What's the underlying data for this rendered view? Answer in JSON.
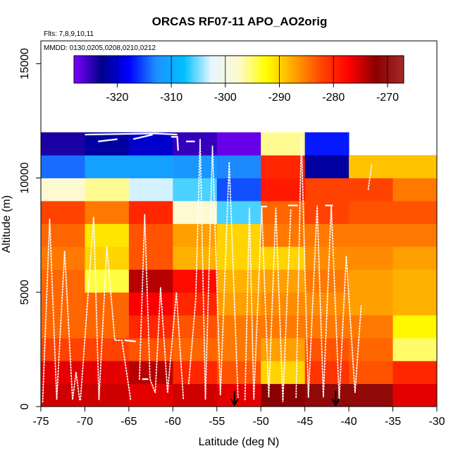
{
  "chart_data": {
    "type": "heatmap",
    "title": "ORCAS RF07-11 APO_AO2orig",
    "flights_note": "Flts: 7,8,9,10,11",
    "dates_note": "MMDD: 0130,0205,0208,0210,0212",
    "xlabel": "Latitude (deg N)",
    "ylabel": "Altitude (m)",
    "xlim": [
      -75,
      -30
    ],
    "ylim": [
      0,
      16000
    ],
    "x_ticks": [
      -75,
      -70,
      -65,
      -60,
      -55,
      -50,
      -45,
      -40,
      -35,
      -30
    ],
    "y_ticks": [
      0,
      5000,
      10000,
      15000
    ],
    "colorbar": {
      "range": [
        -328,
        -267
      ],
      "ticks": [
        -320,
        -310,
        -300,
        -290,
        -280,
        -270
      ],
      "palette": [
        "#7f00ff",
        "#00008b",
        "#0000ff",
        "#1e90ff",
        "#00bfff",
        "#e6f6ff",
        "#fffacd",
        "#ffff00",
        "#ffa500",
        "#ff4500",
        "#ff0000",
        "#8b0000",
        "#a52a2a"
      ]
    },
    "lat_bins": [
      -75,
      -70,
      -65,
      -60,
      -55,
      -50,
      -45,
      -40,
      -35
    ],
    "alt_bins": [
      0,
      1000,
      2000,
      3000,
      4000,
      5000,
      6000,
      7000,
      8000,
      9000,
      10000,
      11000,
      12000
    ],
    "values": [
      [
        -275,
        -275,
        -276,
        -275,
        -276,
        -272,
        -271,
        -271,
        -276
      ],
      [
        -276,
        -276,
        -274,
        -280,
        -283,
        -290,
        -281,
        -283,
        -280
      ],
      [
        -282,
        -282,
        -283,
        -284,
        -285,
        -287,
        -283,
        -284,
        -295
      ],
      [
        -284,
        -284,
        -280,
        -283,
        -285,
        -285,
        -285,
        -285,
        -292
      ],
      [
        -284,
        -284,
        -277,
        -280,
        -287,
        -286,
        -286,
        -287,
        -288
      ],
      [
        -284,
        -294,
        -274,
        -278,
        -288,
        -287,
        -285,
        -287,
        -288
      ],
      [
        -285,
        -290,
        -283,
        -288,
        -290,
        -290,
        -286,
        -286,
        -287
      ],
      [
        -284,
        -291,
        -283,
        -287,
        -290,
        -285,
        -285,
        -285,
        -285
      ],
      [
        -282,
        -285,
        -280,
        -298,
        -306,
        -284,
        -282,
        -283,
        -283
      ],
      [
        -298,
        -296,
        -303,
        -306,
        -315,
        -279,
        -282,
        -282,
        -285
      ],
      [
        -314,
        -311,
        -311,
        -312,
        -313,
        -280,
        -322,
        -289,
        -289
      ],
      [
        -324,
        -322,
        -320,
        -325,
        -327,
        -296,
        -317,
        null,
        null
      ]
    ],
    "arrows_at_lat": [
      -53,
      -41.5
    ]
  }
}
